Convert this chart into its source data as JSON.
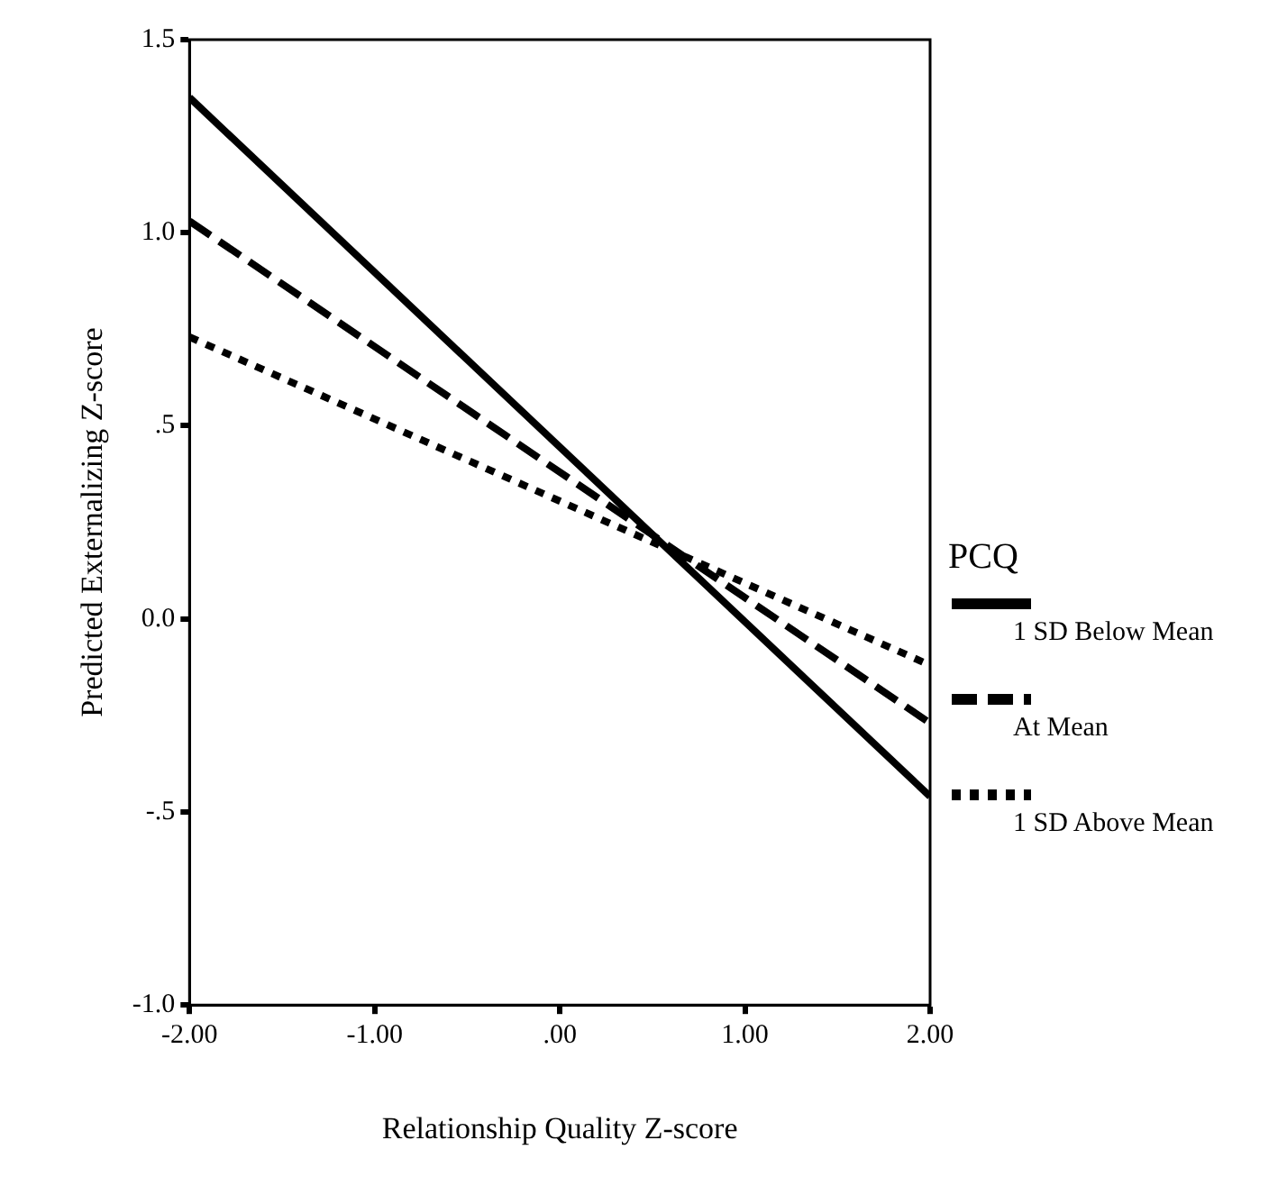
{
  "chart_data": {
    "type": "line",
    "xlabel": "Relationship Quality Z-score",
    "ylabel": "Predicted Externalizing Z-score",
    "legend_title": "PCQ",
    "legend": "right",
    "grid": false,
    "marker": "none",
    "x": [
      -2,
      2
    ],
    "xlim": [
      -2,
      2
    ],
    "xticks": [
      {
        "value": -2,
        "label": "-2.00"
      },
      {
        "value": -1,
        "label": "-1.00"
      },
      {
        "value": 0,
        "label": ".00"
      },
      {
        "value": 1,
        "label": "1.00"
      },
      {
        "value": 2,
        "label": "2.00"
      }
    ],
    "ylim": [
      -1,
      1.5
    ],
    "yticks": [
      {
        "value": -1,
        "label": "-1.0"
      },
      {
        "value": -0.5,
        "label": "-.5"
      },
      {
        "value": 0,
        "label": "0.0"
      },
      {
        "value": 0.5,
        "label": ".5"
      },
      {
        "value": 1,
        "label": "1.0"
      },
      1.5
    ],
    "series": [
      {
        "name": "1 SD Below Mean",
        "color": "#000000",
        "line_style": "solid",
        "values": [
          1.35,
          -0.46
        ]
      },
      {
        "name": "At Mean",
        "color": "#000000",
        "line_style": "dashed",
        "values": [
          1.03,
          -0.27
        ]
      },
      {
        "name": "1 SD Above Mean",
        "color": "#000000",
        "line_style": "dotted",
        "values": [
          0.73,
          -0.12
        ]
      }
    ]
  }
}
